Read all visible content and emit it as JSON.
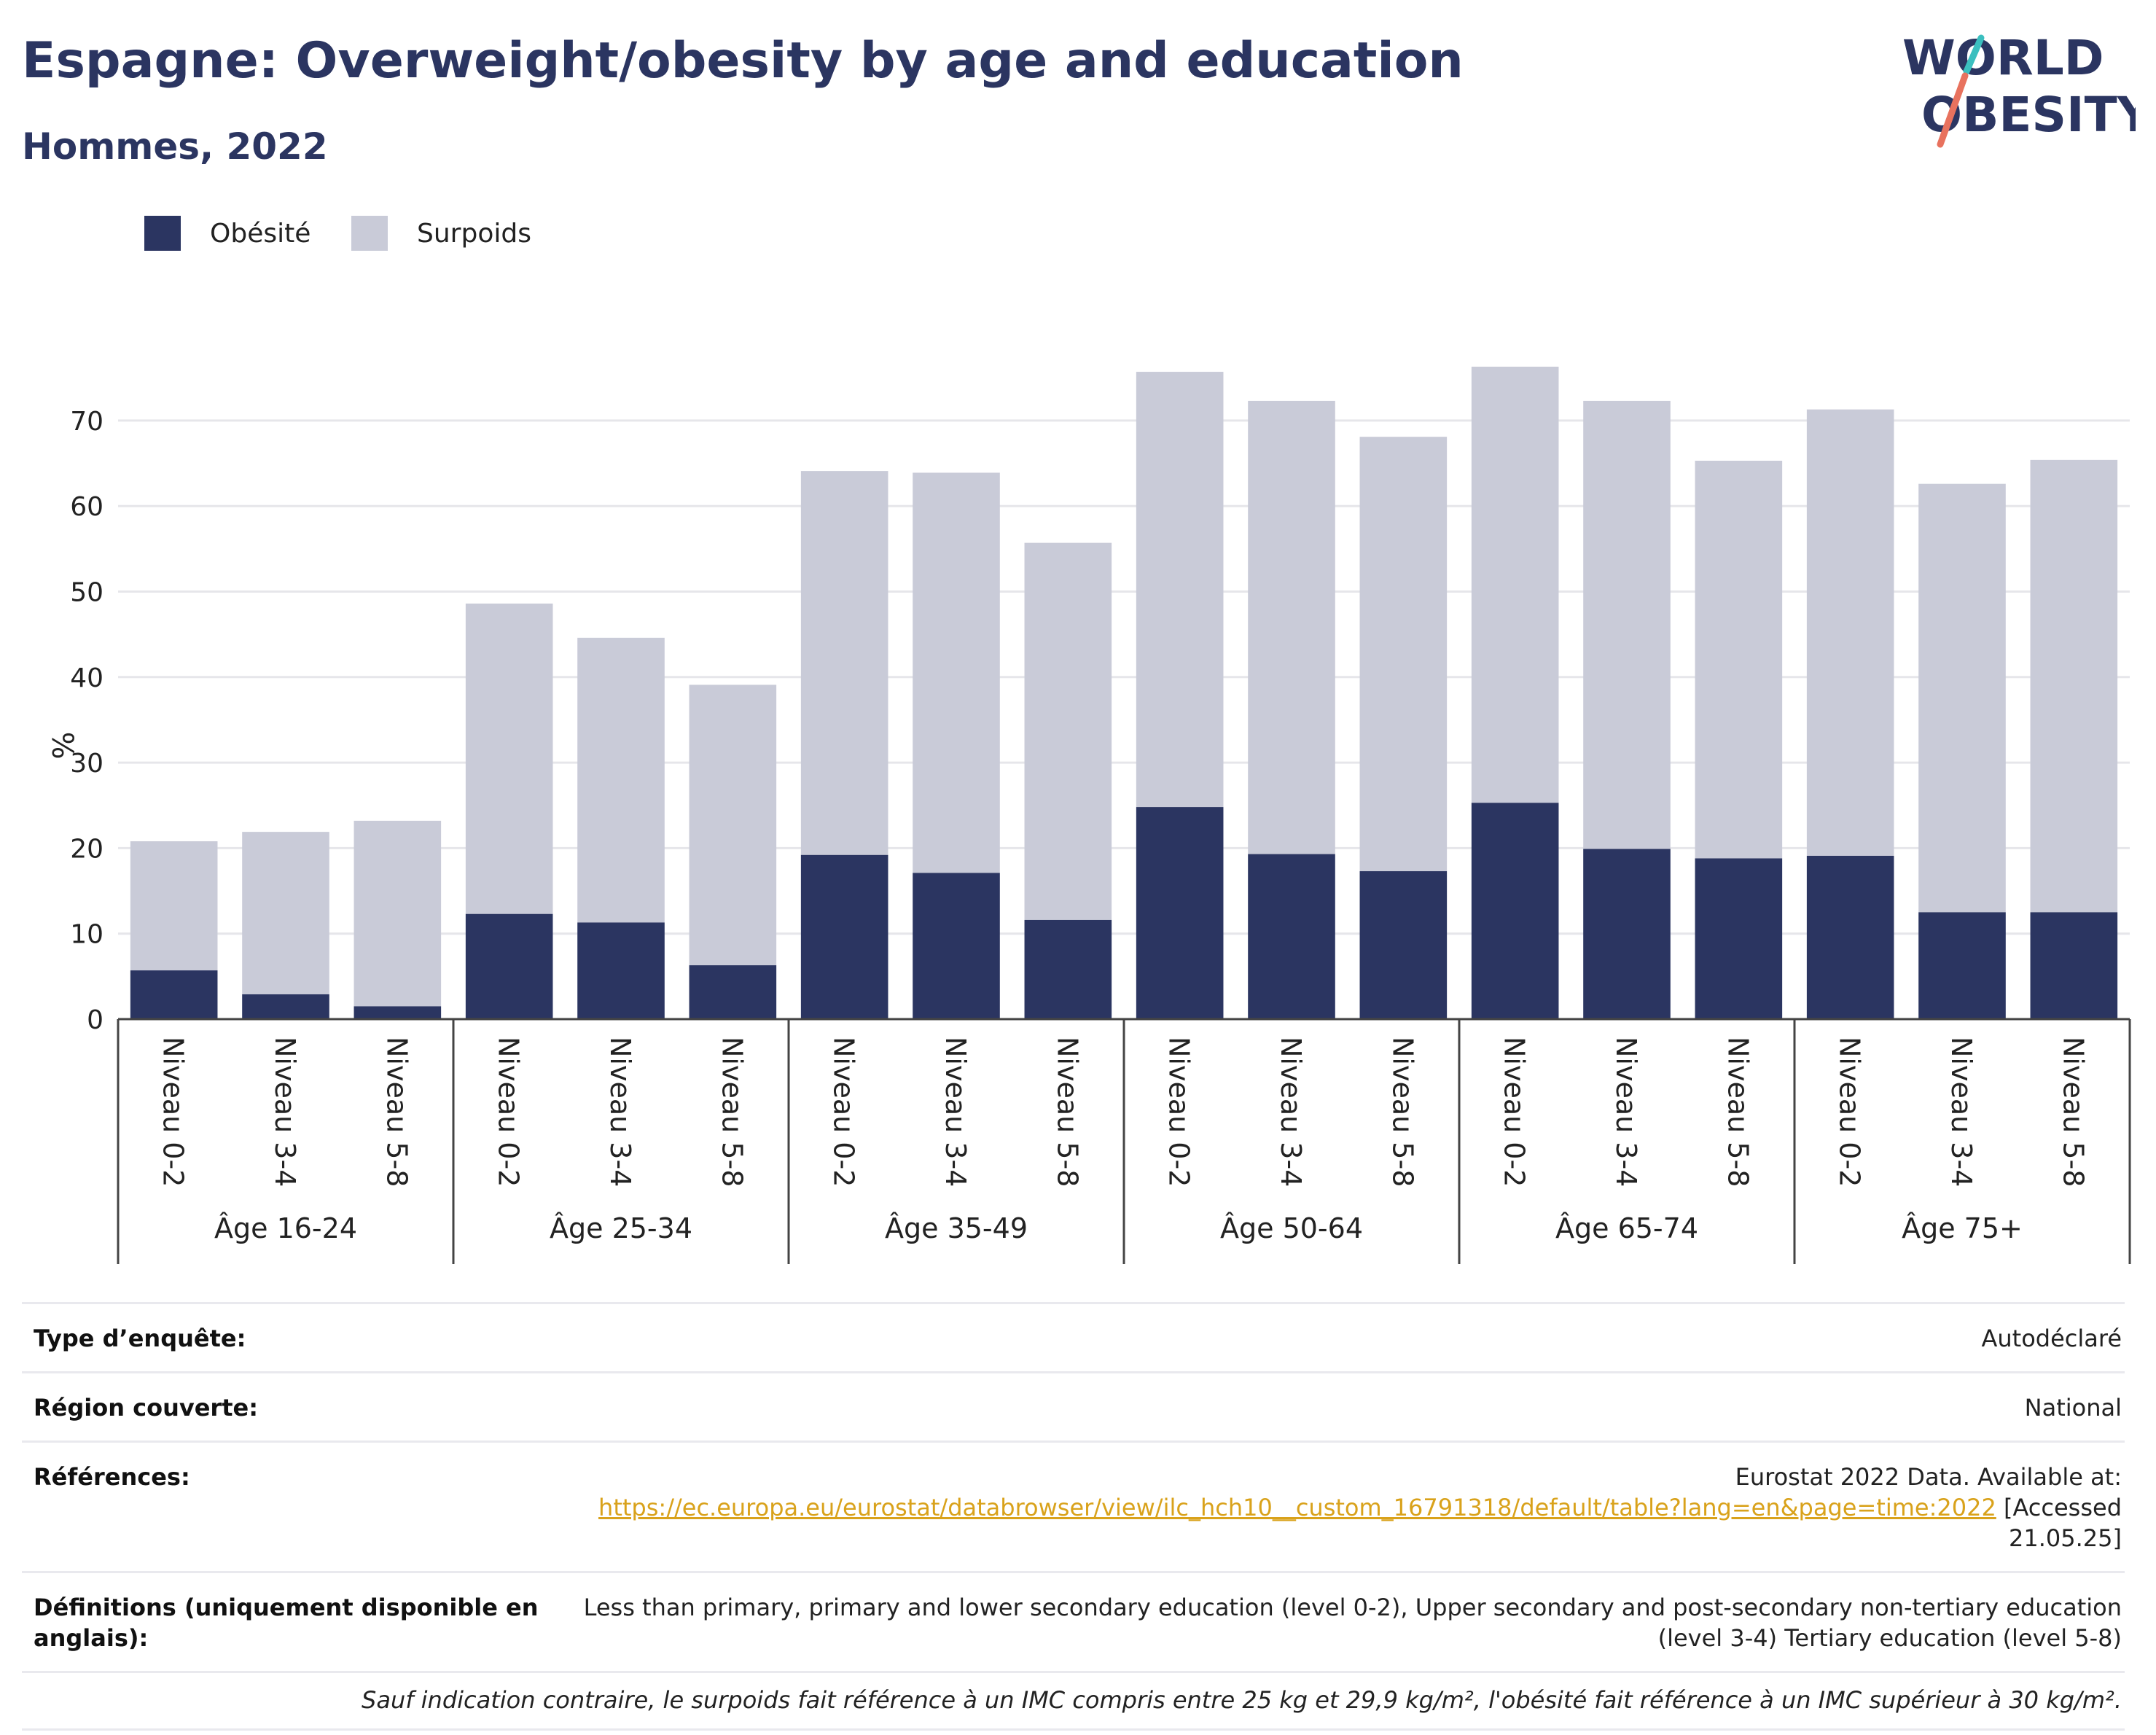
{
  "header": {
    "title": "Espagne: Overweight/obesity by age and education",
    "subtitle": "Hommes, 2022",
    "logo_line1": "WORLD",
    "logo_line2": "OBESITY"
  },
  "colors": {
    "obesity": "#2b3561",
    "overweight": "#c9cbd8",
    "title": "#2b3561",
    "link": "#d9a21b",
    "logo_teal": "#3bbfbf",
    "logo_coral": "#e8725e"
  },
  "legend": [
    {
      "label": "Obésité",
      "color": "#2b3561"
    },
    {
      "label": "Surpoids",
      "color": "#c9cbd8"
    }
  ],
  "chart_data": {
    "type": "bar",
    "stacked": true,
    "ylabel": "%",
    "ylim": [
      0,
      80
    ],
    "yticks": [
      0,
      10,
      20,
      30,
      40,
      50,
      60,
      70
    ],
    "grid": true,
    "legend_position": "top-left",
    "groups": [
      {
        "label": "Âge 16-24",
        "categories": [
          "Niveau 0-2",
          "Niveau 3-4",
          "Niveau 5-8"
        ]
      },
      {
        "label": "Âge 25-34",
        "categories": [
          "Niveau 0-2",
          "Niveau 3-4",
          "Niveau 5-8"
        ]
      },
      {
        "label": "Âge 35-49",
        "categories": [
          "Niveau 0-2",
          "Niveau 3-4",
          "Niveau 5-8"
        ]
      },
      {
        "label": "Âge 50-64",
        "categories": [
          "Niveau 0-2",
          "Niveau 3-4",
          "Niveau 5-8"
        ]
      },
      {
        "label": "Âge 65-74",
        "categories": [
          "Niveau 0-2",
          "Niveau 3-4",
          "Niveau 5-8"
        ]
      },
      {
        "label": "Âge 75+",
        "categories": [
          "Niveau 0-2",
          "Niveau 3-4",
          "Niveau 5-8"
        ]
      }
    ],
    "series": [
      {
        "name": "Obésité",
        "values": [
          5.7,
          2.9,
          1.5,
          12.3,
          11.3,
          6.3,
          19.2,
          17.1,
          11.6,
          24.8,
          19.3,
          17.3,
          25.3,
          19.9,
          18.8,
          19.1,
          12.5,
          12.5
        ]
      },
      {
        "name": "Surpoids",
        "values": [
          15.1,
          19.0,
          21.7,
          36.3,
          33.3,
          32.8,
          44.9,
          46.8,
          44.1,
          50.9,
          53.0,
          50.8,
          51.0,
          52.4,
          46.5,
          52.2,
          50.1,
          52.9
        ]
      }
    ]
  },
  "info": {
    "survey_type": {
      "label": "Type d’enquête:",
      "value": "Autodéclaré"
    },
    "region": {
      "label": "Région couverte:",
      "value": "National"
    },
    "references": {
      "label": "Références:",
      "text": "Eurostat 2022 Data. Available at:",
      "link": "https://ec.europa.eu/eurostat/databrowser/view/ilc_hch10__custom_16791318/default/table?lang=en&page=time:2022",
      "suffix": "[Accessed 21.05.25]"
    },
    "definitions": {
      "label": "Définitions (uniquement disponible en anglais):",
      "value": "Less than primary, primary and lower secondary education (level 0-2), Upper secondary and post-secondary non-tertiary education (level 3-4) Tertiary education (level 5-8)"
    },
    "note": "Sauf indication contraire, le surpoids fait référence à un IMC compris entre 25 kg et 29,9 kg/m², l'obésité fait référence à un IMC supérieur à 30 kg/m²."
  }
}
